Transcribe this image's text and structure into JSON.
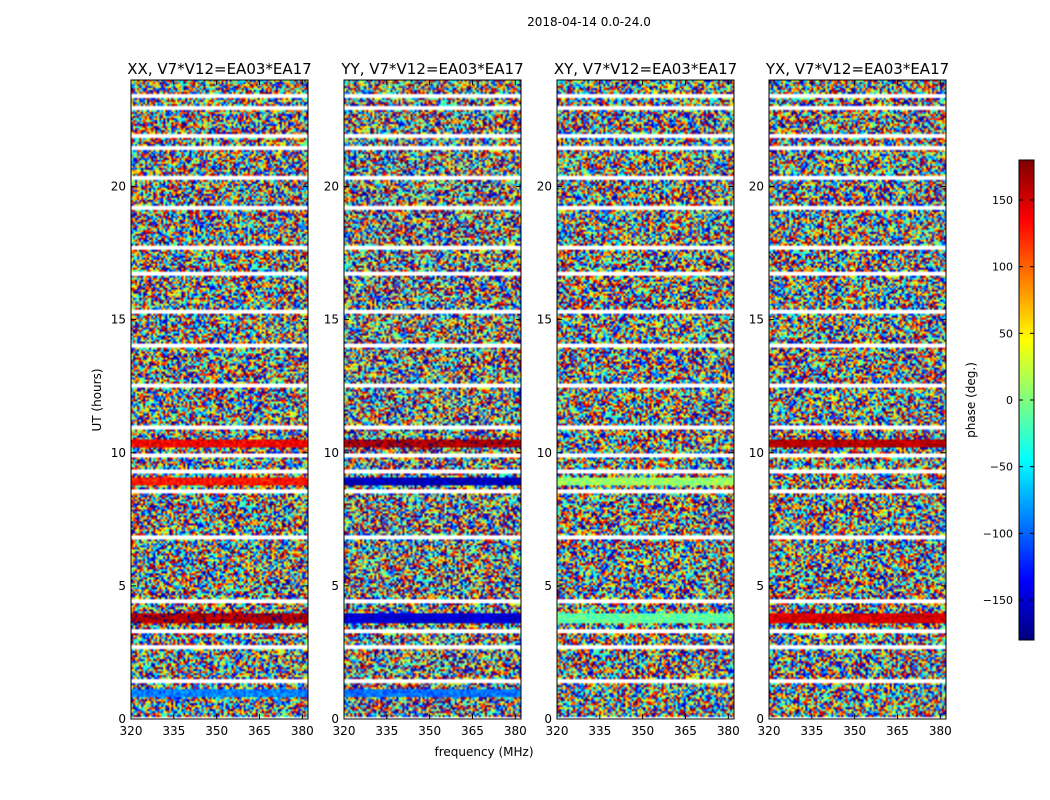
{
  "figure_title": "2018-04-14 0.0-24.0",
  "chart_data": {
    "type": "heatmap",
    "shared_xlabel": "frequency (MHz)",
    "ylabel": "UT (hours)",
    "xlim": [
      320,
      382
    ],
    "ylim": [
      0,
      24
    ],
    "xticks": [
      320,
      335,
      350,
      365,
      380
    ],
    "yticks": [
      0,
      5,
      10,
      15,
      20
    ],
    "colorbar": {
      "label": "phase (deg.)",
      "range": [
        -180,
        180
      ],
      "ticks": [
        150,
        100,
        50,
        0,
        -50,
        -100,
        -150
      ],
      "tick_labels": [
        "150",
        "100",
        "50",
        "0",
        "−50",
        "−100",
        "−150"
      ],
      "colormap": [
        "#00007f",
        "#0000ff",
        "#007fff",
        "#00ffff",
        "#7fff7f",
        "#ffff00",
        "#ff7f00",
        "#ff0000",
        "#7f0000"
      ]
    },
    "panels": [
      {
        "title": "XX, V7*V12=EA03*EA17",
        "coherent_bands": [
          {
            "t0": 0.8,
            "t1": 1.1,
            "phase": -90
          },
          {
            "t0": 3.6,
            "t1": 4.0,
            "phase": 165
          },
          {
            "t0": 8.8,
            "t1": 9.1,
            "phase": 130
          },
          {
            "t0": 10.2,
            "t1": 10.5,
            "phase": 140
          }
        ]
      },
      {
        "title": "YY, V7*V12=EA03*EA17",
        "coherent_bands": [
          {
            "t0": 0.8,
            "t1": 1.1,
            "phase": -95
          },
          {
            "t0": 3.6,
            "t1": 4.0,
            "phase": -150
          },
          {
            "t0": 8.8,
            "t1": 9.1,
            "phase": -160
          },
          {
            "t0": 10.2,
            "t1": 10.5,
            "phase": 165
          }
        ]
      },
      {
        "title": "XY, V7*V12=EA03*EA17",
        "coherent_bands": [
          {
            "t0": 3.6,
            "t1": 4.0,
            "phase": -10
          },
          {
            "t0": 8.8,
            "t1": 9.1,
            "phase": 10
          }
        ]
      },
      {
        "title": "YX, V7*V12=EA03*EA17",
        "coherent_bands": [
          {
            "t0": 3.6,
            "t1": 4.0,
            "phase": 150
          },
          {
            "t0": 10.2,
            "t1": 10.5,
            "phase": 160
          }
        ]
      }
    ],
    "flagged_gaps_hours": [
      0.1,
      1.5,
      2.8,
      3.4,
      4.5,
      6.9,
      8.6,
      9.4,
      10.0,
      11.0,
      12.6,
      14.1,
      15.4,
      16.8,
      17.8,
      19.3,
      20.4,
      21.5,
      22.0,
      23.0,
      23.5
    ]
  }
}
